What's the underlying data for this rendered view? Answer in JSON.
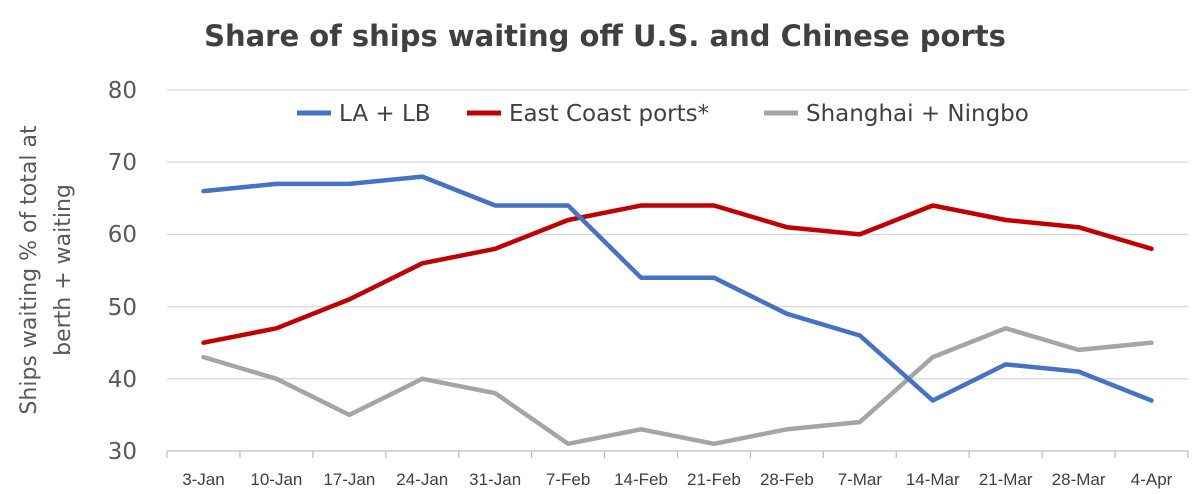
{
  "chart_data": {
    "type": "line",
    "title": "Share of ships waiting off U.S. and Chinese ports",
    "ylabel": [
      "Ships waiting % of total at",
      "berth + waiting"
    ],
    "xlabel": "",
    "categories": [
      "3-Jan",
      "10-Jan",
      "17-Jan",
      "24-Jan",
      "31-Jan",
      "7-Feb",
      "14-Feb",
      "21-Feb",
      "28-Feb",
      "7-Mar",
      "14-Mar",
      "21-Mar",
      "28-Mar",
      "4-Apr"
    ],
    "yticks": [
      "80",
      "70",
      "60",
      "50",
      "40",
      "30"
    ],
    "ylim": [
      30,
      80
    ],
    "grid": true,
    "legend_position": "top",
    "series": [
      {
        "name": "LA + LB",
        "color": "#4472c4",
        "values": [
          66,
          67,
          67,
          68,
          64,
          64,
          54,
          54,
          49,
          46,
          37,
          42,
          41,
          37
        ]
      },
      {
        "name": "East Coast ports*",
        "color": "#c00000",
        "values": [
          45,
          47,
          51,
          56,
          58,
          62,
          64,
          64,
          61,
          60,
          64,
          62,
          61,
          58
        ]
      },
      {
        "name": "Shanghai + Ningbo",
        "color": "#a5a5a5",
        "values": [
          43,
          40,
          35,
          40,
          38,
          31,
          33,
          31,
          33,
          34,
          43,
          47,
          44,
          45
        ]
      }
    ]
  }
}
